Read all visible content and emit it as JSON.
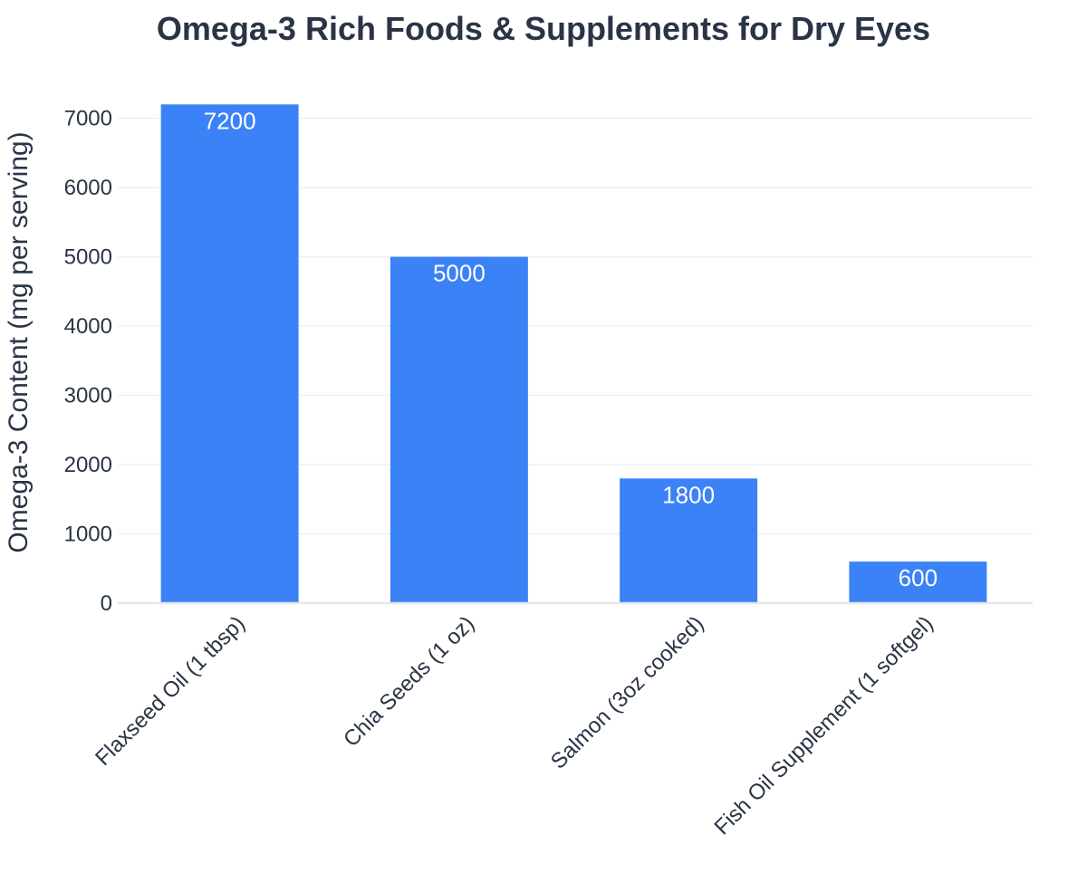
{
  "chart_data": {
    "type": "bar",
    "title": "Omega-3 Rich Foods & Supplements for Dry Eyes",
    "xlabel": "",
    "ylabel": "Omega-3 Content (mg per serving)",
    "categories": [
      "Flaxseed Oil (1 tbsp)",
      "Chia Seeds (1 oz)",
      "Salmon (3oz cooked)",
      "Fish Oil Supplement (1 softgel)"
    ],
    "values": [
      7200,
      5000,
      1800,
      600
    ],
    "data_labels": [
      "7200",
      "5000",
      "1800",
      "600"
    ],
    "yticks": [
      0,
      1000,
      2000,
      3000,
      4000,
      5000,
      6000,
      7000
    ],
    "ylim": [
      0,
      7400
    ],
    "grid": true,
    "legend": "none",
    "colors": {
      "bar": "#3b82f6",
      "title": "#2a3446",
      "text": "#2a3446",
      "bar_label": "#ffffff",
      "grid": "#eef0f3",
      "axis_line": "#e3e7ee"
    }
  }
}
